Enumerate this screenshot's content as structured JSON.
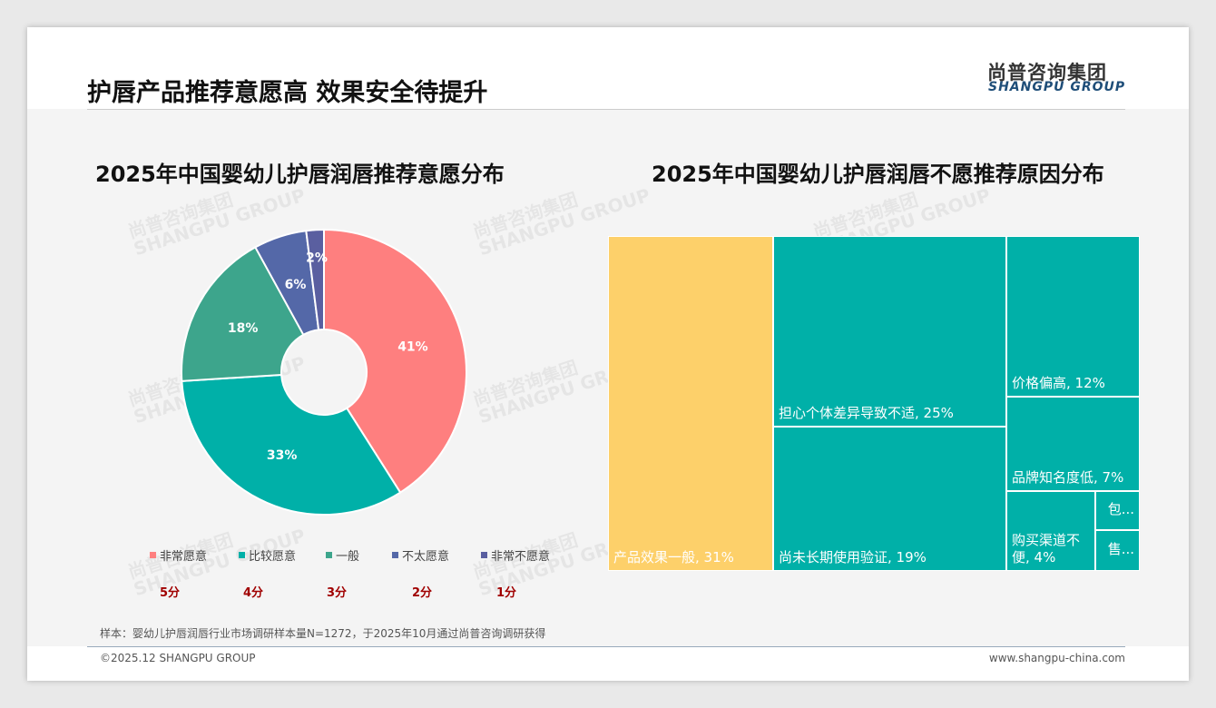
{
  "header": {
    "title": "护唇产品推荐意愿高 效果安全待提升",
    "logo_cn": "尚普咨询集团",
    "logo_en": "SHANGPU GROUP"
  },
  "watermark": "尚普咨询集团 SHANGPU GROUP",
  "chart_data": [
    {
      "type": "pie",
      "title": "2025年中国婴幼儿护唇润唇推荐意愿分布",
      "categories": [
        "非常愿意",
        "比较愿意",
        "一般",
        "不太愿意",
        "非常不愿意"
      ],
      "values": [
        41,
        33,
        18,
        6,
        2
      ],
      "labels": [
        "41%",
        "33%",
        "18%",
        "6%",
        "2%"
      ],
      "scores": [
        "5分",
        "4分",
        "3分",
        "2分",
        "1分"
      ],
      "colors": [
        "#fe7f7f",
        "#00b0a8",
        "#3da58c",
        "#5468a8",
        "#5a5fa0"
      ],
      "legend": "bottom"
    },
    {
      "type": "treemap",
      "title": "2025年中国婴幼儿护唇润唇不愿推荐原因分布",
      "items": [
        {
          "label": "产品效果一般, 31%",
          "value": 31,
          "color": "#fdd06a"
        },
        {
          "label": "担心个体差异导致不适, 25%",
          "value": 25,
          "color": "#00b0a8"
        },
        {
          "label": "尚未长期使用验证, 19%",
          "value": 19,
          "color": "#00b0a8"
        },
        {
          "label": "价格偏高, 12%",
          "value": 12,
          "color": "#00b0a8"
        },
        {
          "label": "品牌知名度低, 7%",
          "value": 7,
          "color": "#00b0a8"
        },
        {
          "label": "购买渠道不便, 4%",
          "value": 4,
          "color": "#00b0a8"
        },
        {
          "label": "包...",
          "value": 1,
          "color": "#00b0a8"
        },
        {
          "label": "售...",
          "value": 1,
          "color": "#00b0a8"
        }
      ]
    }
  ],
  "note": "样本：婴幼儿护唇润唇行业市场调研样本量N=1272，于2025年10月通过尚普咨询调研获得",
  "footer": {
    "copyright": "©2025.12 SHANGPU GROUP",
    "url": "www.shangpu-china.com"
  }
}
